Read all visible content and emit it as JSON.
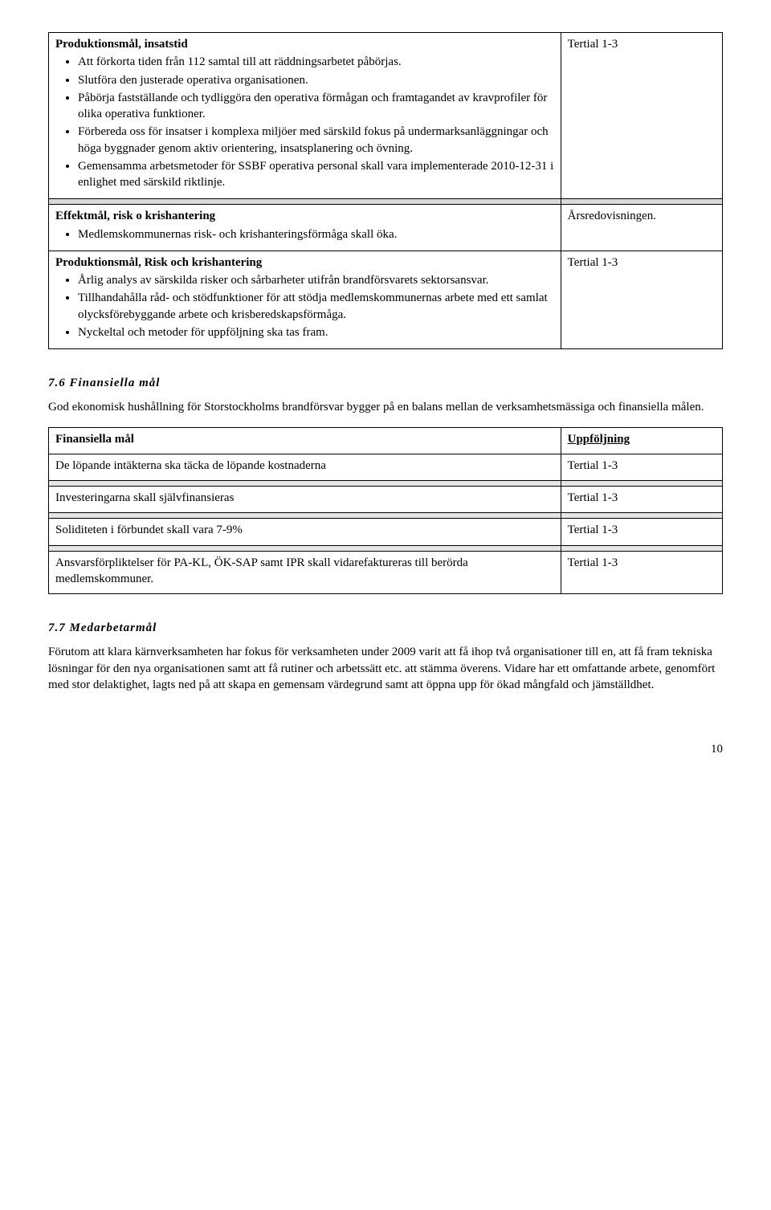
{
  "table1": {
    "row1": {
      "heading": "Produktionsmål, insatstid",
      "bullets": [
        "Att förkorta tiden från 112 samtal till att räddningsarbetet påbörjas.",
        "Slutföra den justerade operativa organisationen.",
        "Påbörja fastställande och tydliggöra den operativa förmågan och framtagandet av kravprofiler för olika operativa funktioner.",
        "Förbereda oss för insatser i komplexa miljöer med särskild fokus på undermarksanläggningar och höga byggnader genom aktiv orientering, insatsplanering och övning.",
        "Gemensamma arbetsmetoder för SSBF operativa personal skall vara implementerade 2010-12-31 i enlighet med särskild riktlinje."
      ],
      "right": "Tertial 1-3"
    },
    "row2": {
      "heading": "Effektmål, risk o krishantering",
      "bullets": [
        "Medlemskommunernas risk- och krishanteringsförmåga skall öka."
      ],
      "right": "Årsredovisningen."
    },
    "row3": {
      "heading": "Produktionsmål, Risk och krishantering",
      "bullets": [
        "Årlig analys av särskilda risker och sårbarheter utifrån brandförsvarets sektorsansvar.",
        "Tillhandahålla råd- och stödfunktioner för att stödja medlemskommunernas arbete med ett samlat olycksförebyggande arbete och krisberedskapsförmåga.",
        "Nyckeltal och metoder för uppföljning ska tas fram."
      ],
      "right": "Tertial 1-3"
    }
  },
  "section76": {
    "heading": "7.6  Finansiella mål",
    "para": "God ekonomisk hushållning för Storstockholms brandförsvar bygger på en balans mellan de verksamhetsmässiga och finansiella målen."
  },
  "table2": {
    "head_left": "Finansiella mål",
    "head_right": "Uppföljning",
    "rows": [
      {
        "left": "De löpande intäkterna ska täcka de löpande kostnaderna",
        "right": "Tertial 1-3"
      },
      {
        "left": "Investeringarna skall självfinansieras",
        "right": "Tertial 1-3"
      },
      {
        "left": "Soliditeten i förbundet skall vara 7-9%",
        "right": "Tertial 1-3"
      },
      {
        "left": "Ansvarsförpliktelser för PA-KL, ÖK-SAP samt IPR skall vidarefaktureras till berörda medlemskommuner.",
        "right": "Tertial 1-3"
      }
    ]
  },
  "section77": {
    "heading": "7.7  Medarbetarmål",
    "para": "Förutom att klara kärnverksamheten har fokus för verksamheten under 2009 varit att få ihop två organisationer till en, att få fram tekniska lösningar för den nya organisationen samt att få rutiner och arbetssätt etc. att stämma överens. Vidare har ett omfattande arbete, genomfört med stor delaktighet, lagts ned på att skapa en gemensam värdegrund samt att öppna upp för ökad mångfald och jämställdhet."
  },
  "page_number": "10"
}
